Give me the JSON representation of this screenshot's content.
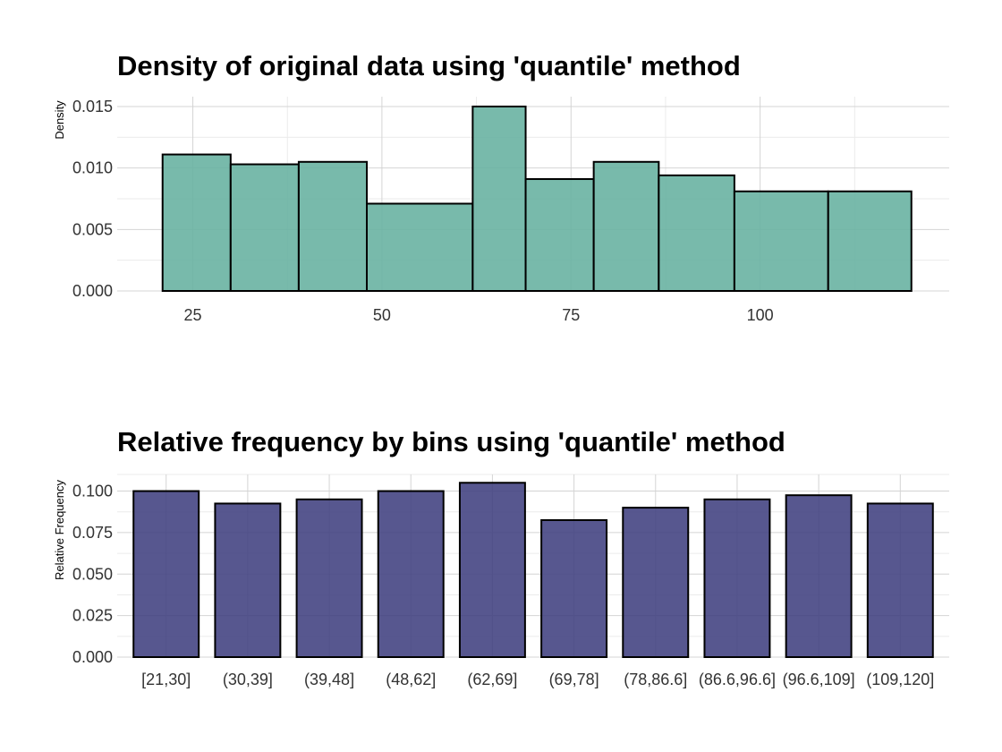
{
  "chart_data": [
    {
      "type": "histogram",
      "title": "Density of original data using 'quantile' method",
      "xlabel": "",
      "ylabel": "Density",
      "xlim": [
        15,
        125
      ],
      "ylim": [
        0,
        0.0158
      ],
      "x_ticks": [
        25,
        50,
        75,
        100
      ],
      "y_ticks": [
        0.0,
        0.005,
        0.01,
        0.015
      ],
      "y_tick_labels": [
        "0.000",
        "0.005",
        "0.010",
        "0.015"
      ],
      "grid": true,
      "fill_color": "#69b3a2",
      "bins": [
        {
          "start": 21,
          "end": 30,
          "density": 0.0111
        },
        {
          "start": 30,
          "end": 39,
          "density": 0.0103
        },
        {
          "start": 39,
          "end": 48,
          "density": 0.0105
        },
        {
          "start": 48,
          "end": 62,
          "density": 0.0071
        },
        {
          "start": 62,
          "end": 69,
          "density": 0.015
        },
        {
          "start": 69,
          "end": 78,
          "density": 0.0091
        },
        {
          "start": 78,
          "end": 86.6,
          "density": 0.0105
        },
        {
          "start": 86.6,
          "end": 96.6,
          "density": 0.0094
        },
        {
          "start": 96.6,
          "end": 109,
          "density": 0.0081
        },
        {
          "start": 109,
          "end": 120,
          "density": 0.0081
        }
      ]
    },
    {
      "type": "bar",
      "title": "Relative frequency by bins using 'quantile' method",
      "xlabel": "",
      "ylabel": "Relative Frequency",
      "ylim": [
        0,
        0.11
      ],
      "y_ticks": [
        0.0,
        0.025,
        0.05,
        0.075,
        0.1
      ],
      "y_tick_labels": [
        "0.000",
        "0.025",
        "0.050",
        "0.075",
        "0.100"
      ],
      "grid": true,
      "fill_color": "#404080",
      "categories": [
        "[21,30]",
        "(30,39]",
        "(39,48]",
        "(48,62]",
        "(62,69]",
        "(69,78]",
        "(78,86.6]",
        "(86.6,96.6]",
        "(96.6,109]",
        "(109,120]"
      ],
      "values": [
        0.1,
        0.0925,
        0.095,
        0.1,
        0.105,
        0.0825,
        0.09,
        0.095,
        0.0975,
        0.0925
      ]
    }
  ]
}
